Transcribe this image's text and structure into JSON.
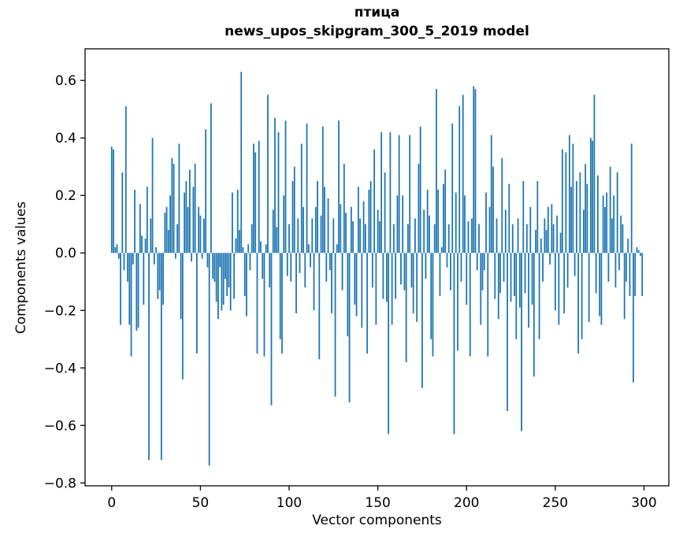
{
  "chart_data": {
    "type": "bar",
    "title": "птица",
    "subtitle": "news_upos_skipgram_300_5_2019 model",
    "xlabel": "Vector components",
    "ylabel": "Components values",
    "xlim": [
      -15,
      314
    ],
    "ylim": [
      -0.81,
      0.71
    ],
    "xticks": [
      0,
      50,
      100,
      150,
      200,
      250,
      300
    ],
    "yticks": [
      -0.8,
      -0.6,
      -0.4,
      -0.2,
      0.0,
      0.2,
      0.4,
      0.6
    ],
    "grid": false,
    "legend": "none",
    "bar_color": "#1f77b4",
    "bar_width_units": 0.8,
    "x_start": 0,
    "values": [
      0.37,
      0.36,
      0.02,
      0.03,
      -0.02,
      -0.25,
      0.28,
      -0.06,
      0.51,
      -0.1,
      -0.25,
      -0.36,
      -0.04,
      0.22,
      -0.27,
      -0.26,
      0.17,
      0.06,
      -0.18,
      0.05,
      0.23,
      -0.72,
      0.12,
      0.4,
      -0.04,
      0.02,
      -0.16,
      -0.13,
      -0.72,
      -0.18,
      0.14,
      0.16,
      0.08,
      0.2,
      0.33,
      0.31,
      -0.02,
      0.1,
      0.38,
      -0.23,
      -0.44,
      0.21,
      0.25,
      0.16,
      0.29,
      -0.03,
      0.23,
      0.31,
      -0.35,
      0.16,
      0.13,
      -0.02,
      0.12,
      0.43,
      -0.05,
      -0.74,
      0.52,
      -0.09,
      -0.1,
      -0.17,
      -0.23,
      -0.05,
      -0.2,
      -0.18,
      -0.09,
      -0.15,
      -0.12,
      -0.2,
      0.21,
      -0.16,
      0.05,
      0.22,
      0.08,
      0.63,
      0.02,
      -0.15,
      -0.22,
      0.03,
      -0.06,
      0.1,
      0.38,
      0.35,
      -0.35,
      0.39,
      0.04,
      -0.09,
      -0.36,
      0.03,
      0.55,
      -0.12,
      -0.53,
      0.15,
      0.47,
      0.09,
      0.42,
      -0.3,
      -0.35,
      0.2,
      0.46,
      -0.08,
      0.1,
      -0.1,
      0.25,
      0.3,
      -0.21,
      0.12,
      -0.07,
      0.38,
      0.16,
      -0.12,
      0.45,
      0.03,
      -0.05,
      0.12,
      -0.2,
      0.16,
      0.25,
      -0.37,
      0.13,
      0.44,
      0.23,
      -0.1,
      0.19,
      -0.06,
      -0.21,
      0.12,
      -0.5,
      0.03,
      0.46,
      0.17,
      -0.13,
      0.31,
      0.14,
      -0.29,
      -0.52,
      0.16,
      0.11,
      -0.18,
      -0.22,
      0.23,
      0.12,
      -0.26,
      0.18,
      0.1,
      -0.35,
      0.22,
      0.25,
      -0.12,
      0.36,
      -0.25,
      0.15,
      0.11,
      0.42,
      -0.16,
      0.28,
      -0.17,
      -0.63,
      0.42,
      -0.25,
      0.1,
      -0.16,
      0.2,
      0.41,
      -0.11,
      0.2,
      -0.13,
      -0.38,
      0.1,
      0.41,
      -0.12,
      -0.21,
      0.12,
      -0.24,
      0.31,
      0.44,
      -0.47,
      0.15,
      -0.09,
      0.22,
      0.13,
      -0.3,
      -0.36,
      0.1,
      0.57,
      0.22,
      -0.15,
      0.02,
      0.24,
      0.29,
      -0.05,
      0.1,
      -0.13,
      0.45,
      -0.63,
      0.21,
      -0.34,
      0.51,
      -0.1,
      0.55,
      0.2,
      -0.18,
      0.11,
      -0.36,
      0.12,
      0.58,
      0.57,
      -0.06,
      0.1,
      -0.25,
      -0.13,
      -0.06,
      0.21,
      -0.36,
      0.16,
      0.41,
      0.3,
      -0.16,
      0.12,
      -0.23,
      -0.14,
      0.33,
      -0.1,
      0.15,
      -0.55,
      0.24,
      -0.17,
      0.1,
      -0.15,
      -0.3,
      0.12,
      -0.19,
      -0.62,
      0.25,
      -0.14,
      0.1,
      -0.26,
      0.16,
      -0.18,
      -0.43,
      0.08,
      0.25,
      -0.3,
      0.05,
      -0.1,
      0.12,
      0.08,
      0.16,
      -0.04,
      0.17,
      0.1,
      -0.2,
      0.13,
      -0.25,
      0.07,
      0.36,
      -0.21,
      0.35,
      -0.12,
      0.41,
      0.23,
      0.38,
      -0.08,
      0.25,
      -0.35,
      0.28,
      -0.3,
      0.15,
      0.31,
      0.24,
      -0.24,
      0.4,
      0.39,
      0.55,
      -0.14,
      0.27,
      -0.22,
      -0.25,
      0.2,
      0.16,
      0.21,
      -0.1,
      0.3,
      0.12,
      0.2,
      -0.12,
      0.28,
      -0.06,
      0.13,
      0.1,
      -0.23,
      -0.1,
      0.05,
      -0.15,
      0.38,
      -0.45,
      -0.15,
      0.02,
      0.01,
      -0.01,
      -0.15
    ]
  }
}
